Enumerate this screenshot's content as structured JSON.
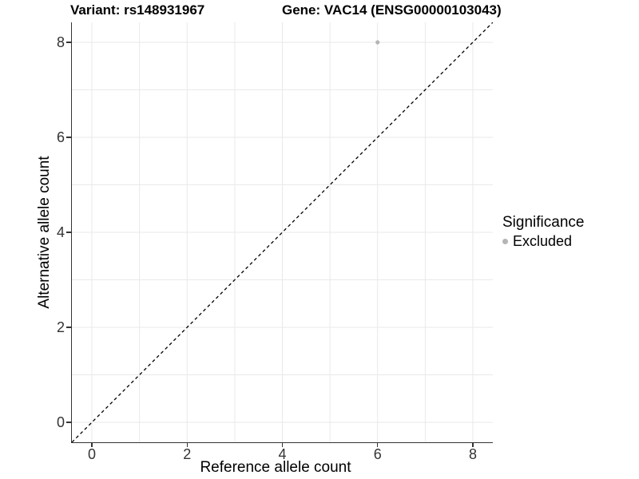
{
  "chart_data": {
    "type": "scatter",
    "title_left": "Variant: rs148931967",
    "title_right": "Gene: VAC14 (ENSG00000103043)",
    "xlabel": "Reference allele count",
    "ylabel": "Alternative allele count",
    "xlim": [
      -0.42,
      8.42
    ],
    "ylim": [
      -0.42,
      8.42
    ],
    "x_ticks": [
      0,
      2,
      4,
      6,
      8
    ],
    "y_ticks": [
      0,
      2,
      4,
      6,
      8
    ],
    "gridline_values": [
      0,
      1,
      2,
      3,
      4,
      5,
      6,
      7,
      8
    ],
    "grid": true,
    "series": [
      {
        "name": "Excluded",
        "color": "#b5b5b5",
        "point_radius": 2.6,
        "points": [
          {
            "x": 6,
            "y": 8
          }
        ]
      }
    ],
    "reference_line": {
      "slope": 1,
      "intercept": 0,
      "style": "dashed",
      "color": "#000000"
    },
    "legend": {
      "title": "Significance",
      "position": "right",
      "entries": [
        {
          "label": "Excluded",
          "color": "#b5b5b5",
          "marker": "circle"
        }
      ]
    },
    "colors": {
      "gridline": "#e9e9e9",
      "axis_line": "#333333",
      "tick_label": "#333333",
      "background": "#ffffff"
    }
  }
}
